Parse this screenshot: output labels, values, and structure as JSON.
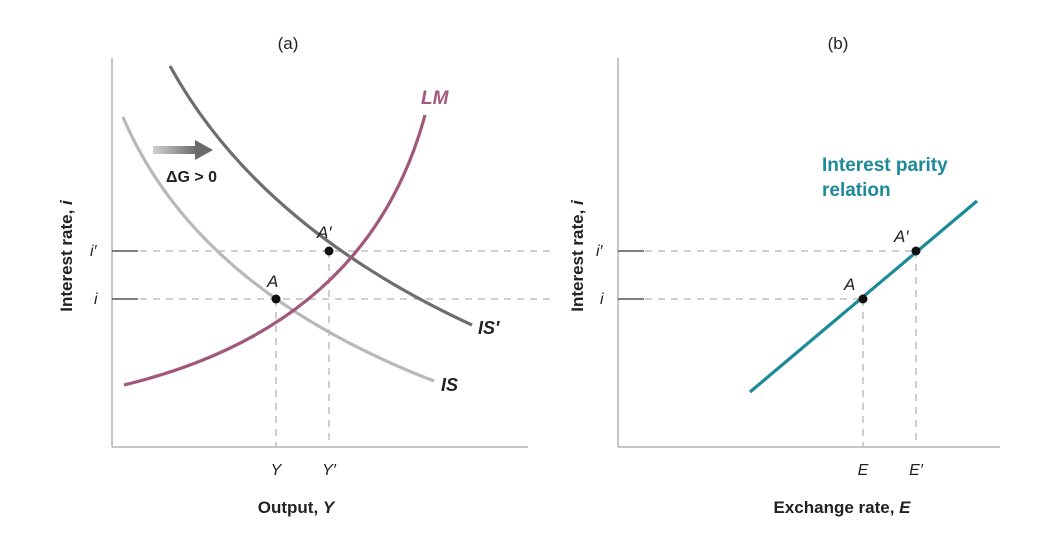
{
  "panel_a": {
    "title": "(a)",
    "y_axis_label_text": "Interest rate, ",
    "y_axis_label_var": "i",
    "x_axis_label_text": "Output, ",
    "x_axis_label_var": "Y",
    "y_tick_high": "i′",
    "y_tick_low": "i",
    "x_tick_low": "Y",
    "x_tick_high": "Y′",
    "curve_lm": "LM",
    "curve_is": "IS",
    "curve_is_prime": "IS′",
    "point_a": "A",
    "point_a_prime": "A′",
    "shift_label_text": "ΔG > 0",
    "shift_label_var": "G"
  },
  "panel_b": {
    "title": "(b)",
    "y_axis_label_text": "Interest rate, ",
    "y_axis_label_var": "i",
    "x_axis_label_text": "Exchange rate, ",
    "x_axis_label_var": "E",
    "y_tick_high": "i′",
    "y_tick_low": "i",
    "x_tick_low": "E",
    "x_tick_high": "E′",
    "relation_line1": "Interest parity",
    "relation_line2": "relation",
    "point_a": "A",
    "point_a_prime": "A′"
  },
  "colors": {
    "lm": "#a0587b",
    "is": "#b8b8b8",
    "is_prime": "#6e6e6e",
    "parity": "#1c8a99",
    "arrow": "#8a8a8a"
  }
}
